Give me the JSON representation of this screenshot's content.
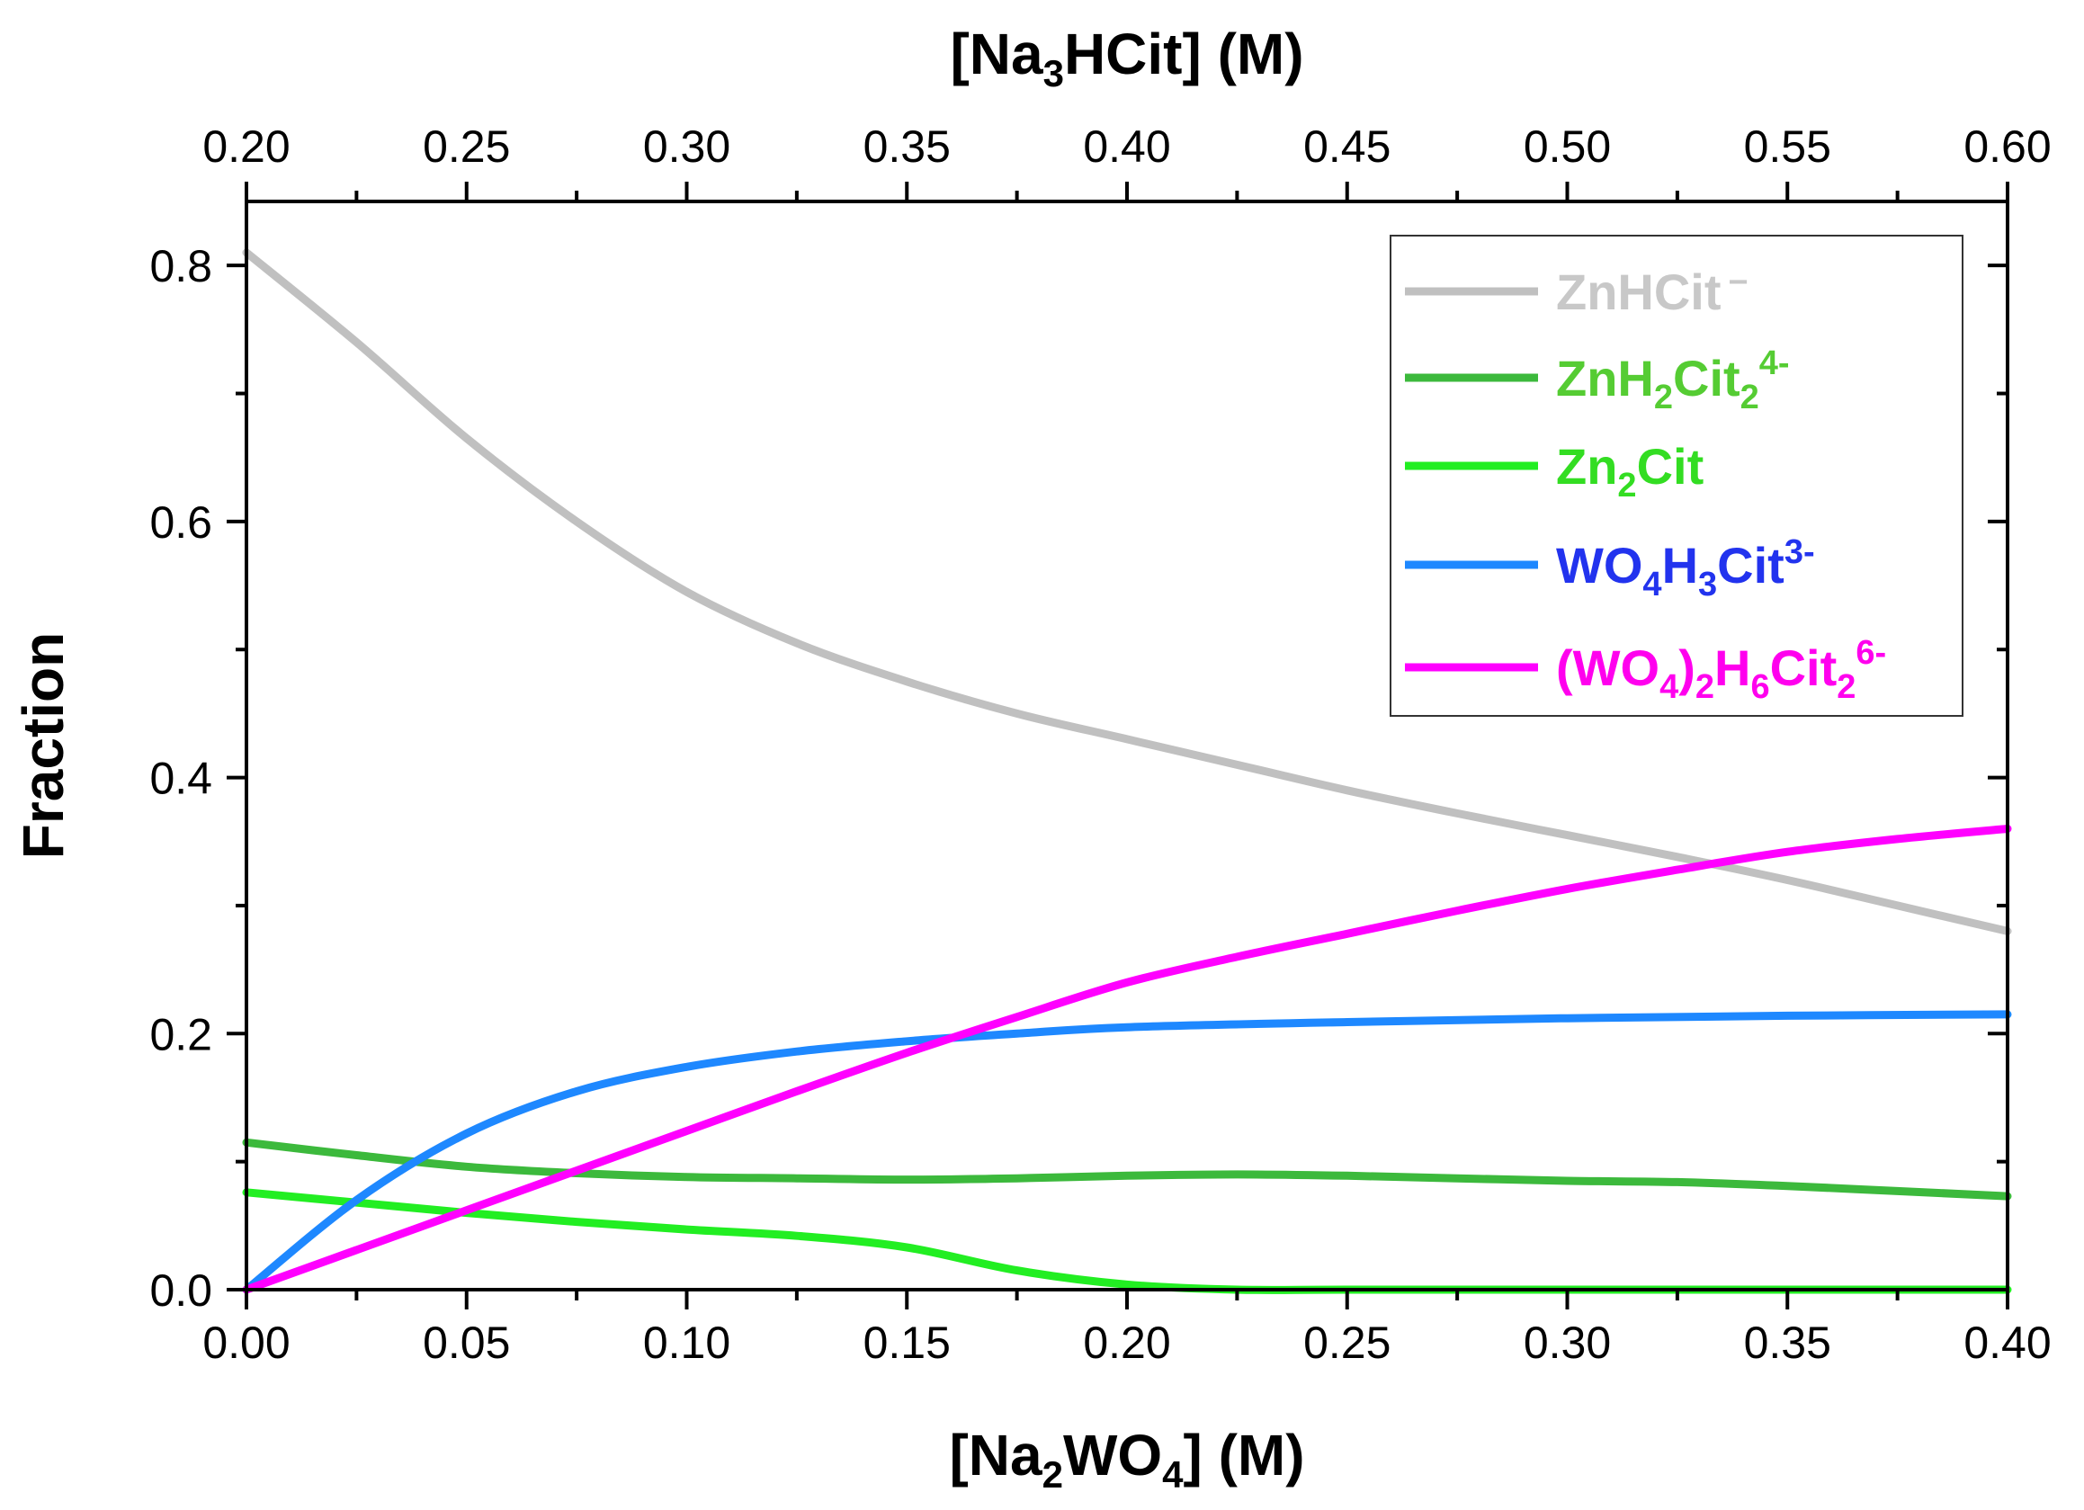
{
  "chart_data": {
    "type": "line",
    "xlabel": {
      "prefix": "[Na",
      "sub": "2",
      "mid": "WO",
      "sub2": "4",
      "suffix": "] (M)"
    },
    "x2label": {
      "prefix": "[Na",
      "sub": "3",
      "suffix": "HCit] (M)"
    },
    "ylabel": "Fraction",
    "xlim": [
      0,
      0.4
    ],
    "x2lim": [
      0.2,
      0.6
    ],
    "ylim": [
      0,
      0.85
    ],
    "xticks": [
      "0.00",
      "0.05",
      "0.10",
      "0.15",
      "0.20",
      "0.25",
      "0.30",
      "0.35",
      "0.40"
    ],
    "x2ticks": [
      "0.20",
      "0.25",
      "0.30",
      "0.35",
      "0.40",
      "0.45",
      "0.50",
      "0.55",
      "0.60"
    ],
    "yticks": [
      "0.0",
      "0.2",
      "0.4",
      "0.6",
      "0.8"
    ],
    "legend_position": "top-right",
    "series": [
      {
        "name": "ZnHCit −",
        "label": {
          "base": "ZnHCit",
          "sup": "−"
        },
        "color": "#c0c0c0",
        "x": [
          0,
          0.025,
          0.05,
          0.075,
          0.1,
          0.125,
          0.15,
          0.175,
          0.2,
          0.225,
          0.25,
          0.275,
          0.3,
          0.325,
          0.35,
          0.375,
          0.4
        ],
        "y": [
          0.81,
          0.74,
          0.665,
          0.6,
          0.545,
          0.505,
          0.475,
          0.45,
          0.43,
          0.41,
          0.39,
          0.372,
          0.355,
          0.338,
          0.32,
          0.3,
          0.28
        ]
      },
      {
        "name": "ZnH2Cit2 4-",
        "label": {
          "base": "ZnH",
          "sub1": "2",
          "mid": "Cit",
          "sub2": "2",
          "sup": "4-"
        },
        "color": "#3cb93c",
        "x": [
          0,
          0.025,
          0.05,
          0.075,
          0.1,
          0.125,
          0.15,
          0.175,
          0.2,
          0.225,
          0.25,
          0.275,
          0.3,
          0.325,
          0.35,
          0.375,
          0.4
        ],
        "y": [
          0.115,
          0.105,
          0.096,
          0.091,
          0.088,
          0.087,
          0.086,
          0.087,
          0.089,
          0.09,
          0.089,
          0.087,
          0.085,
          0.084,
          0.081,
          0.077,
          0.073
        ]
      },
      {
        "name": "Zn2Cit",
        "label": {
          "base": "Zn",
          "sub1": "2",
          "mid": "Cit"
        },
        "color": "#22ee22",
        "x": [
          0,
          0.025,
          0.05,
          0.075,
          0.1,
          0.125,
          0.15,
          0.175,
          0.2,
          0.225,
          0.25,
          0.3,
          0.35,
          0.4
        ],
        "y": [
          0.076,
          0.068,
          0.06,
          0.053,
          0.047,
          0.042,
          0.033,
          0.015,
          0.004,
          0,
          0,
          0,
          0,
          0
        ]
      },
      {
        "name": "WO4H3Cit 3-",
        "label": {
          "base": "WO",
          "sub1": "4",
          "mid": "H",
          "sub2": "3",
          "end": "Cit",
          "sup": "3-"
        },
        "color": "#1e88ff",
        "x": [
          0,
          0.025,
          0.05,
          0.075,
          0.1,
          0.125,
          0.15,
          0.175,
          0.2,
          0.25,
          0.3,
          0.35,
          0.4
        ],
        "y": [
          0,
          0.07,
          0.122,
          0.155,
          0.174,
          0.186,
          0.194,
          0.2,
          0.205,
          0.209,
          0.212,
          0.214,
          0.215
        ]
      },
      {
        "name": "(WO4)2H6Cit2 6-",
        "label": {
          "base": "(WO",
          "sub1": "4",
          "mid": ")",
          "sub2": "2",
          "mid2": "H",
          "sub3": "6",
          "end": "Cit",
          "sub4": "2",
          "sup": "6-"
        },
        "color": "#ff00ff",
        "x": [
          0,
          0.025,
          0.05,
          0.075,
          0.1,
          0.125,
          0.15,
          0.175,
          0.2,
          0.225,
          0.25,
          0.275,
          0.3,
          0.325,
          0.35,
          0.375,
          0.4
        ],
        "y": [
          0,
          0.031,
          0.062,
          0.093,
          0.124,
          0.155,
          0.185,
          0.213,
          0.24,
          0.26,
          0.278,
          0.296,
          0.313,
          0.328,
          0.342,
          0.352,
          0.36
        ]
      }
    ]
  }
}
